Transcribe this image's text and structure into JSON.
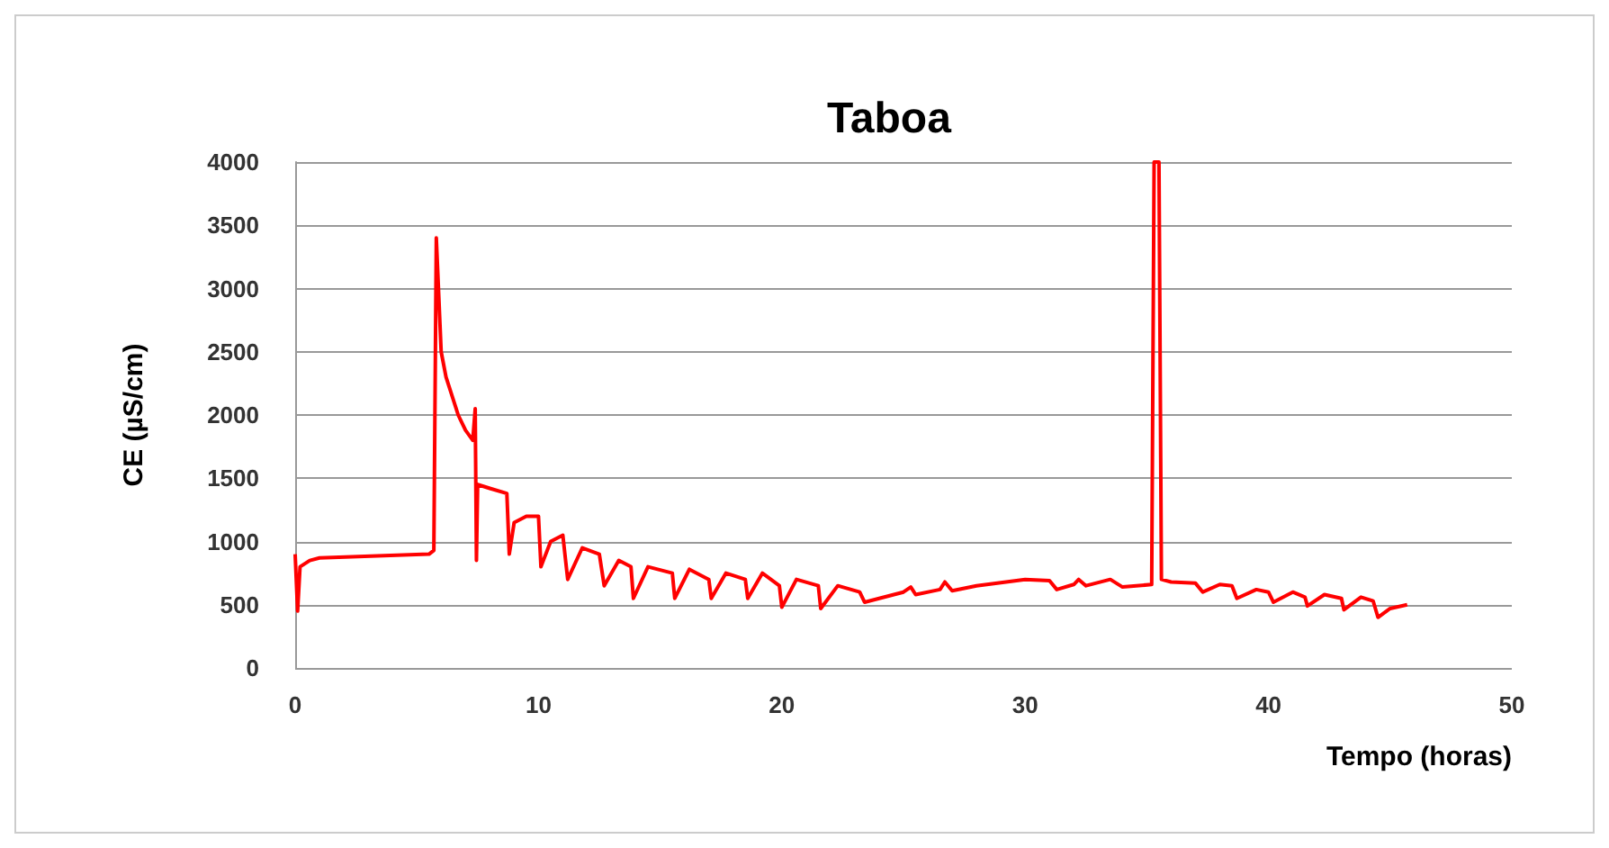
{
  "chart_data": {
    "type": "line",
    "title": "Taboa",
    "xlabel": "Tempo (horas)",
    "ylabel": "CE (µS/cm)",
    "xlim": [
      0,
      50
    ],
    "xticks": [
      0,
      10,
      20,
      30,
      40,
      50
    ],
    "ylim": [
      0,
      4000
    ],
    "yticks": [
      0,
      500,
      1000,
      1500,
      2000,
      2500,
      3000,
      3500,
      4000
    ],
    "grid": "y",
    "marker": "none",
    "line_style": "solid",
    "series": [
      {
        "color": "#ff0000",
        "x": [
          0,
          0.1,
          0.2,
          0.6,
          1,
          5.5,
          5.7,
          5.8,
          6,
          6.2,
          6.7,
          7,
          7.3,
          7.4,
          7.45,
          7.5,
          8,
          8.7,
          8.8,
          9,
          9.5,
          10,
          10.1,
          10.5,
          11,
          11.2,
          11.8,
          12.5,
          12.7,
          13.3,
          13.8,
          13.9,
          14.5,
          15.5,
          15.6,
          16.2,
          17,
          17.1,
          17.7,
          18.5,
          18.6,
          19.2,
          19.9,
          20,
          20.6,
          21.5,
          21.6,
          22.3,
          23.2,
          23.4,
          24,
          25,
          25.3,
          25.5,
          26.5,
          26.7,
          27,
          28,
          30,
          31,
          31.3,
          32,
          32.2,
          32.5,
          33.5,
          34,
          35.2,
          35.3,
          35.5,
          35.6,
          36,
          37,
          37.3,
          38,
          38.5,
          38.7,
          39.5,
          40,
          40.2,
          41,
          41.5,
          41.6,
          42.3,
          43,
          43.1,
          43.8,
          44.3,
          44.5,
          45,
          45.7
        ],
        "values": [
          900,
          450,
          800,
          850,
          870,
          900,
          930,
          3400,
          2500,
          2300,
          2000,
          1880,
          1800,
          2050,
          850,
          1450,
          1420,
          1380,
          900,
          1150,
          1200,
          1200,
          800,
          1000,
          1050,
          700,
          950,
          900,
          650,
          850,
          800,
          550,
          800,
          750,
          550,
          780,
          700,
          550,
          750,
          700,
          550,
          750,
          650,
          480,
          700,
          650,
          470,
          650,
          600,
          520,
          550,
          600,
          640,
          580,
          620,
          680,
          610,
          650,
          700,
          690,
          620,
          660,
          700,
          650,
          700,
          640,
          660,
          4000,
          4000,
          700,
          680,
          670,
          600,
          660,
          650,
          550,
          620,
          600,
          520,
          600,
          560,
          490,
          580,
          550,
          460,
          560,
          530,
          400,
          470,
          500
        ]
      }
    ]
  }
}
